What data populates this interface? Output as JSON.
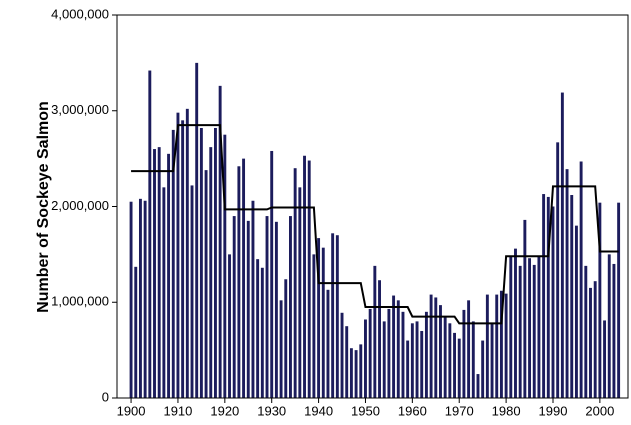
{
  "chart_data": {
    "type": "bar",
    "y_label": "Number of Sockeye Salmon",
    "color": "#1c1c5c",
    "x": [
      1900,
      1901,
      1902,
      1903,
      1904,
      1905,
      1906,
      1907,
      1908,
      1909,
      1910,
      1911,
      1912,
      1913,
      1914,
      1915,
      1916,
      1917,
      1918,
      1919,
      1920,
      1921,
      1922,
      1923,
      1924,
      1925,
      1926,
      1927,
      1928,
      1929,
      1930,
      1931,
      1932,
      1933,
      1934,
      1935,
      1936,
      1937,
      1938,
      1939,
      1940,
      1941,
      1942,
      1943,
      1944,
      1945,
      1946,
      1947,
      1948,
      1949,
      1950,
      1951,
      1952,
      1953,
      1954,
      1955,
      1956,
      1957,
      1958,
      1959,
      1960,
      1961,
      1962,
      1963,
      1964,
      1965,
      1966,
      1967,
      1968,
      1969,
      1970,
      1971,
      1972,
      1973,
      1974,
      1975,
      1976,
      1977,
      1978,
      1979,
      1980,
      1981,
      1982,
      1983,
      1984,
      1985,
      1986,
      1987,
      1988,
      1989,
      1990,
      1991,
      1992,
      1993,
      1994,
      1995,
      1996,
      1997,
      1998,
      1999,
      2000,
      2001,
      2002,
      2003,
      2004
    ],
    "values": [
      2050000,
      1370000,
      2080000,
      2060000,
      3420000,
      2600000,
      2620000,
      2200000,
      2550000,
      2800000,
      2980000,
      2900000,
      3020000,
      2220000,
      3500000,
      2820000,
      2380000,
      2620000,
      2820000,
      3260000,
      2750000,
      1500000,
      1900000,
      2420000,
      2500000,
      1850000,
      2060000,
      1450000,
      1360000,
      1900000,
      2580000,
      1840000,
      1020000,
      1240000,
      1900000,
      2400000,
      2200000,
      2530000,
      2480000,
      1500000,
      1670000,
      1570000,
      1130000,
      1720000,
      1700000,
      890000,
      750000,
      520000,
      500000,
      560000,
      820000,
      930000,
      1380000,
      1230000,
      800000,
      930000,
      1070000,
      1020000,
      900000,
      600000,
      780000,
      800000,
      700000,
      900000,
      1080000,
      1050000,
      970000,
      850000,
      780000,
      680000,
      620000,
      920000,
      1020000,
      800000,
      250000,
      600000,
      1080000,
      780000,
      1080000,
      1120000,
      1090000,
      1480000,
      1560000,
      1380000,
      1860000,
      1460000,
      1390000,
      1480000,
      2130000,
      2100000,
      2000000,
      2670000,
      3190000,
      2390000,
      2120000,
      1800000,
      2470000,
      1380000,
      1150000,
      1220000,
      2040000,
      810000,
      1500000,
      1400000,
      2040000
    ],
    "line": {
      "color": "#000000",
      "x": [
        1900,
        1909,
        1910,
        1919,
        1920,
        1929,
        1930,
        1939,
        1940,
        1949,
        1950,
        1959,
        1960,
        1969,
        1970,
        1979,
        1980,
        1989,
        1990,
        1999,
        2000,
        2004
      ],
      "values": [
        2370000,
        2370000,
        2850000,
        2850000,
        1970000,
        1970000,
        1990000,
        1990000,
        1200000,
        1200000,
        950000,
        950000,
        850000,
        850000,
        780000,
        780000,
        1480000,
        1480000,
        2210000,
        2210000,
        1530000,
        1530000
      ]
    },
    "xlim": [
      1897,
      2006
    ],
    "xticks": [
      1900,
      1910,
      1920,
      1930,
      1940,
      1950,
      1960,
      1970,
      1980,
      1990,
      2000
    ],
    "ylim": [
      0,
      4000000
    ],
    "yticks": [
      0,
      {
        "value": 1000000,
        "label": "1,000,000"
      },
      {
        "value": 2000000,
        "label": "2,000,000"
      },
      {
        "value": 3000000,
        "label": "3,000,000"
      },
      {
        "value": 4000000,
        "label": "4,000,000"
      }
    ]
  }
}
